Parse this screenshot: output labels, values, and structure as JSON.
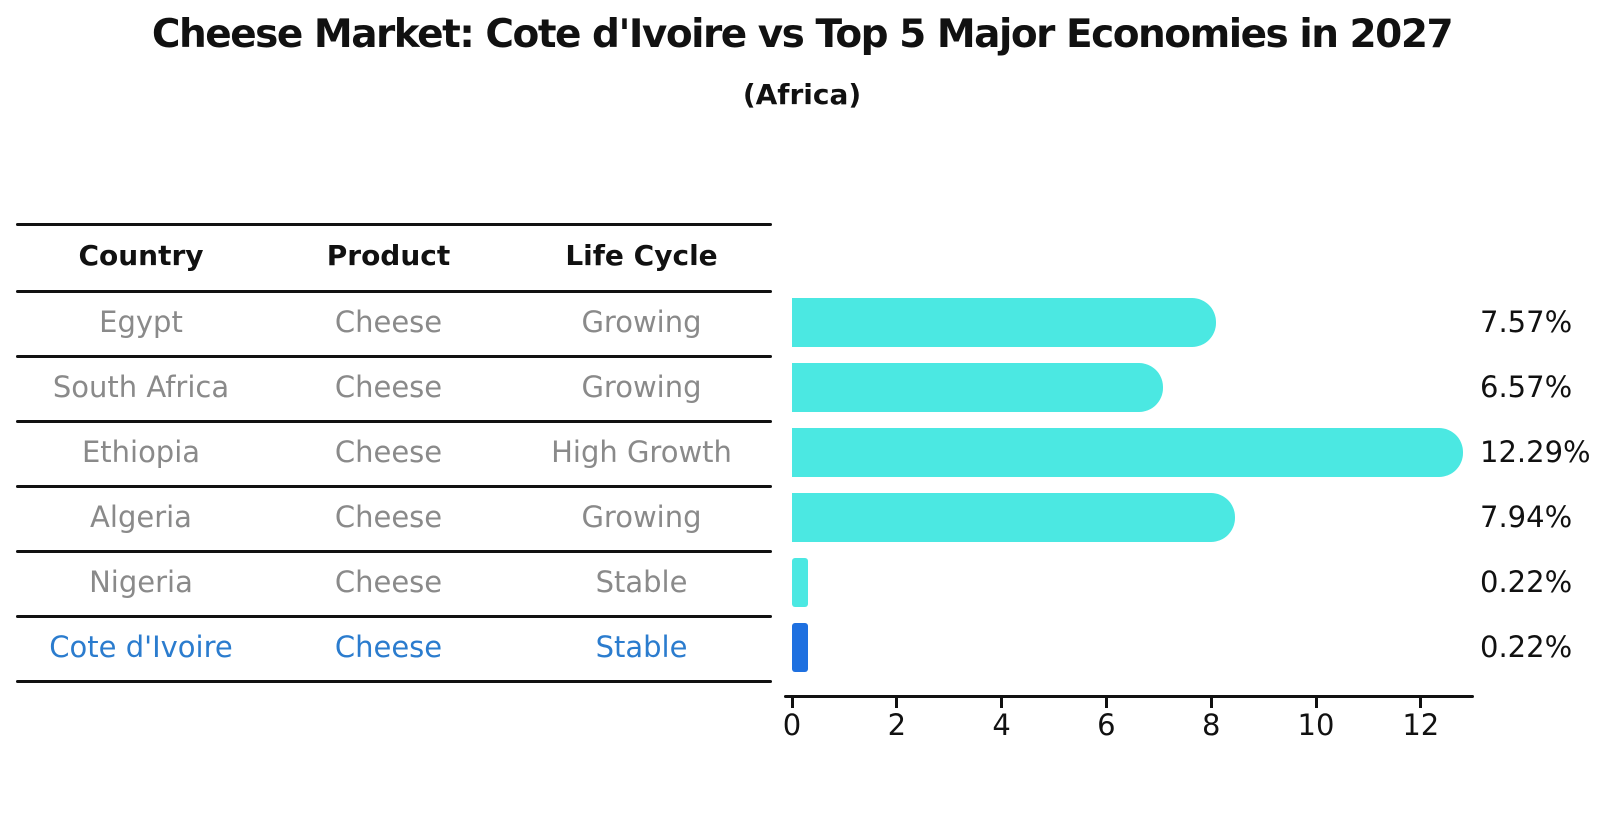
{
  "title": "Cheese Market: Cote d'Ivoire vs Top 5 Major Economies in 2027",
  "subtitle": "(Africa)",
  "table": {
    "headers": [
      "Country",
      "Product",
      "Life Cycle"
    ]
  },
  "chart_data": {
    "type": "bar",
    "orientation": "horizontal",
    "title": "Cheese Market: Cote d'Ivoire vs Top 5 Major Economies in 2027",
    "subtitle": "(Africa)",
    "categories": [
      "Egypt",
      "South Africa",
      "Ethiopia",
      "Algeria",
      "Nigeria",
      "Cote d'Ivoire"
    ],
    "values": [
      7.57,
      6.57,
      12.29,
      7.94,
      0.22,
      0.22
    ],
    "value_labels": [
      "7.57%",
      "6.57%",
      "12.29%",
      "7.94%",
      "0.22%",
      "0.22%"
    ],
    "rows": [
      {
        "country": "Egypt",
        "product": "Cheese",
        "life_cycle": "Growing",
        "value": 7.57,
        "label": "7.57%",
        "highlight": false
      },
      {
        "country": "South Africa",
        "product": "Cheese",
        "life_cycle": "Growing",
        "value": 6.57,
        "label": "6.57%",
        "highlight": false
      },
      {
        "country": "Ethiopia",
        "product": "Cheese",
        "life_cycle": "High Growth",
        "value": 12.29,
        "label": "12.29%",
        "highlight": false
      },
      {
        "country": "Algeria",
        "product": "Cheese",
        "life_cycle": "Growing",
        "value": 7.94,
        "label": "7.94%",
        "highlight": false
      },
      {
        "country": "Nigeria",
        "product": "Cheese",
        "life_cycle": "Stable",
        "value": 0.22,
        "label": "0.22%",
        "highlight": false
      },
      {
        "country": "Cote d'Ivoire",
        "product": "Cheese",
        "life_cycle": "Stable",
        "value": 0.22,
        "label": "0.22%",
        "highlight": true
      }
    ],
    "xticks": [
      0,
      2,
      4,
      6,
      8,
      10,
      12
    ],
    "xlim": [
      0,
      13
    ],
    "xlabel": "",
    "ylabel": "",
    "grid": false,
    "legend": false,
    "bar_color": "#4BE8E2",
    "highlight_color": "#1E70E0",
    "highlight_text_color": "#2B7CCE",
    "text_color": "#111111",
    "muted_text_color": "#8A8A8A",
    "background_color": "#FFFFFF"
  }
}
